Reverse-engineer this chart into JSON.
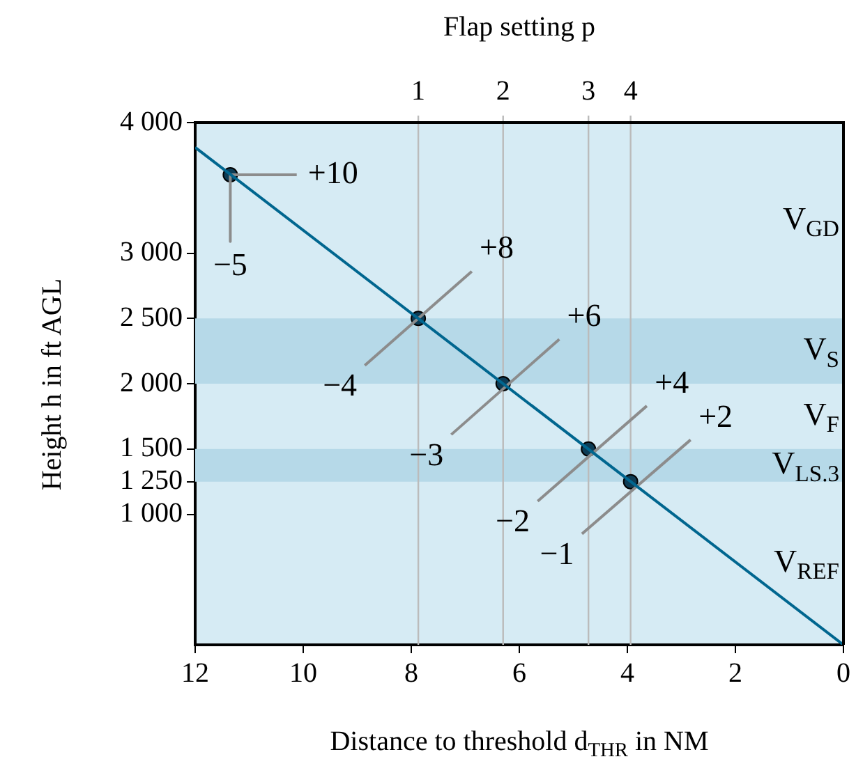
{
  "chart_data": {
    "type": "line",
    "xlabel": "Distance to threshold d$_{THR}$ in NM",
    "ylabel": "Height h in ft AGL",
    "x2label": "Flap setting p",
    "xlim": [
      12,
      0
    ],
    "xticks": [
      12,
      10,
      8,
      6,
      4,
      2,
      0
    ],
    "ylim": [
      0,
      4000
    ],
    "yticks": [
      {
        "value": 1000,
        "label": "1 000"
      },
      {
        "value": 1250,
        "label": "1 250"
      },
      {
        "value": 1500,
        "label": "1 500"
      },
      {
        "value": 2000,
        "label": "2 000"
      },
      {
        "value": 2500,
        "label": "2 500"
      },
      {
        "value": 3000,
        "label": "3 000"
      },
      {
        "value": 4000,
        "label": "4 000"
      }
    ],
    "series": [
      {
        "color": "#00668f",
        "x": [
          12,
          0
        ],
        "values": [
          3810,
          0
        ],
        "marker": "none"
      },
      {
        "color": "#8c8c8c",
        "x": [
          11.35,
          10.12
        ],
        "values": [
          3600,
          3600
        ],
        "marker": "none"
      },
      {
        "color": "#8c8c8c",
        "x": [
          11.35,
          11.35
        ],
        "values": [
          3600,
          3090
        ],
        "marker": "none"
      },
      {
        "color": "#8c8c8c",
        "x": [
          8.86,
          6.88
        ],
        "values": [
          2140,
          2860
        ],
        "marker": "none"
      },
      {
        "color": "#8c8c8c",
        "x": [
          7.26,
          5.26
        ],
        "values": [
          1610,
          2340
        ],
        "marker": "none"
      },
      {
        "color": "#8c8c8c",
        "x": [
          5.66,
          3.64
        ],
        "values": [
          1100,
          1830
        ],
        "marker": "none"
      },
      {
        "color": "#8c8c8c",
        "x": [
          4.84,
          2.83
        ],
        "values": [
          850,
          1570
        ],
        "marker": "none"
      },
      {
        "type": "scatter",
        "color": "#0d3c55",
        "x": [
          11.35,
          7.87,
          6.3,
          4.72,
          3.94
        ],
        "values": [
          3600,
          2500,
          2000,
          1500,
          1250
        ],
        "marker": "circle"
      }
    ],
    "bands": [
      {
        "axis": "y",
        "from": 2000,
        "to": 2500,
        "color": "#b6d9e8",
        "label": "V$_{S}$"
      },
      {
        "axis": "y",
        "from": 1250,
        "to": 1500,
        "color": "#b6d9e8",
        "label": "V$_{LS.3}$"
      }
    ],
    "ref_lines": [
      {
        "axis": "x",
        "value": 7.87,
        "color": "#bbbbbb"
      },
      {
        "axis": "x",
        "value": 6.3,
        "color": "#bbbbbb"
      },
      {
        "axis": "x",
        "value": 4.72,
        "color": "#bbbbbb"
      },
      {
        "axis": "x",
        "value": 3.94,
        "color": "#bbbbbb"
      }
    ],
    "annotations": [
      {
        "text": "+10",
        "x": 10.12,
        "y": 3600
      },
      {
        "text": "−5",
        "x": 11.35,
        "y": 3090
      },
      {
        "text": "+8",
        "x": 6.88,
        "y": 2860
      },
      {
        "text": "−4",
        "x": 8.86,
        "y": 2140
      },
      {
        "text": "+6",
        "x": 5.26,
        "y": 2340
      },
      {
        "text": "−3",
        "x": 7.26,
        "y": 1610
      },
      {
        "text": "+4",
        "x": 3.64,
        "y": 1830
      },
      {
        "text": "−2",
        "x": 5.66,
        "y": 1100
      },
      {
        "text": "+2",
        "x": 2.83,
        "y": 1570
      },
      {
        "text": "−1",
        "x": 4.84,
        "y": 850
      },
      {
        "text": "1",
        "x": 7.87,
        "y": 4000
      },
      {
        "text": "2",
        "x": 6.3,
        "y": 4000
      },
      {
        "text": "3",
        "x": 4.72,
        "y": 4000
      },
      {
        "text": "4",
        "x": 3.94,
        "y": 4000
      },
      "V$_{GD}$",
      "V$_{F}$",
      "V$_{REF}$"
    ],
    "grid": false,
    "legend": false
  }
}
